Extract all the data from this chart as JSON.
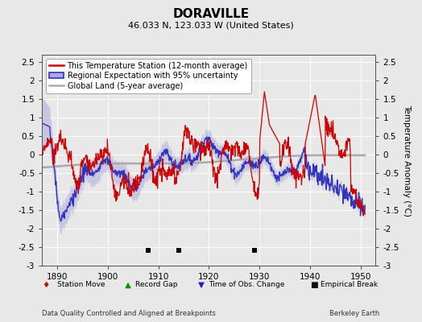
{
  "title": "DORAVILLE",
  "subtitle": "46.033 N, 123.033 W (United States)",
  "xlabel_left": "Data Quality Controlled and Aligned at Breakpoints",
  "xlabel_right": "Berkeley Earth",
  "ylabel": "Temperature Anomaly (°C)",
  "xlim": [
    1887,
    1953
  ],
  "ylim": [
    -3.0,
    2.7
  ],
  "yticks": [
    -3,
    -2.5,
    -2,
    -1.5,
    -1,
    -0.5,
    0,
    0.5,
    1,
    1.5,
    2,
    2.5
  ],
  "xticks": [
    1890,
    1900,
    1910,
    1920,
    1930,
    1940,
    1950
  ],
  "background_color": "#e8e8e8",
  "plot_bg_color": "#e8e8e8",
  "empirical_breaks": [
    1908,
    1914,
    1929
  ],
  "red_line_color": "#cc0000",
  "blue_line_color": "#3333bb",
  "blue_fill_color": "#aaaadd",
  "gray_line_color": "#aaaaaa",
  "grid_color": "#ffffff",
  "title_fontsize": 11,
  "subtitle_fontsize": 8,
  "legend_fontsize": 7,
  "tick_fontsize": 7.5,
  "ylabel_fontsize": 7.5,
  "vlines": [
    1910,
    1920,
    1930
  ]
}
